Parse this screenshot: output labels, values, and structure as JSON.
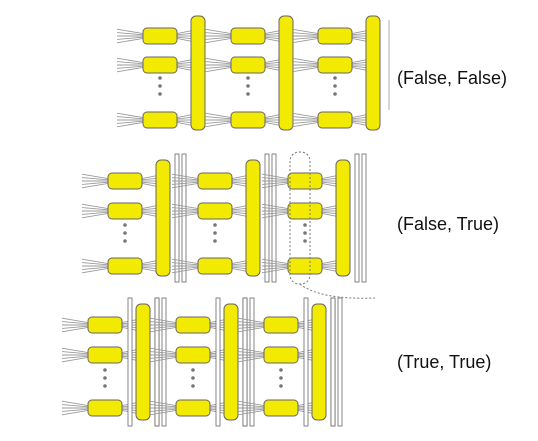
{
  "colors": {
    "module_fill": "#f2ea00",
    "bus_fill": "#f2ea00",
    "outline": "#666666",
    "wire": "#9a9a9a",
    "rail_fill": "#ffffff"
  },
  "labels": [
    "(False, False)",
    "(False, True)",
    "(True, True)"
  ],
  "panels": [
    {
      "variant": "no-rails",
      "groups": 3,
      "modules_per_group": 3,
      "dotted_loop": false
    },
    {
      "variant": "rails-right",
      "groups": 3,
      "modules_per_group": 3,
      "dotted_loop": true
    },
    {
      "variant": "rails-both",
      "groups": 3,
      "modules_per_group": 3,
      "dotted_loop": false
    }
  ]
}
